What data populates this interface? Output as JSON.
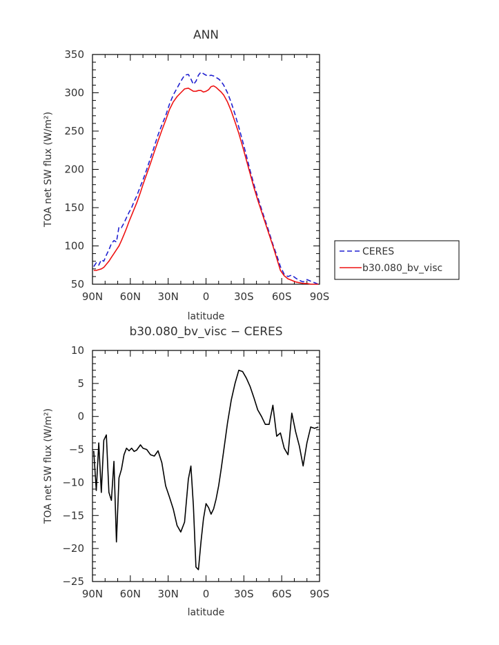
{
  "chart_data": [
    {
      "type": "line",
      "title": "ANN",
      "xlabel": "latitude",
      "ylabel": "TOA net SW flux (W/m²)",
      "x_ticks": [
        "90N",
        "60N",
        "30N",
        "0",
        "30S",
        "60S",
        "90S"
      ],
      "x_tick_values": [
        90,
        60,
        30,
        0,
        -30,
        -60,
        -90
      ],
      "xlim": [
        90,
        -90
      ],
      "ylim": [
        50,
        350
      ],
      "y_ticks": [
        50,
        100,
        150,
        200,
        250,
        300,
        350
      ],
      "legend_position": "right",
      "series": [
        {
          "name": "CERES",
          "color": "#1f1fd0",
          "style": "dashed",
          "x": [
            89,
            87,
            85,
            83,
            81,
            79,
            77,
            75,
            73,
            71,
            69,
            67,
            65,
            63,
            61,
            59,
            57,
            55,
            52,
            50,
            47,
            44,
            41,
            38,
            35,
            32,
            29,
            26,
            23,
            20,
            17,
            14,
            12,
            10,
            8,
            6,
            4,
            2,
            0,
            -2,
            -4,
            -6,
            -8,
            -10,
            -12,
            -14,
            -17,
            -20,
            -23,
            -26,
            -29,
            -32,
            -35,
            -38,
            -41,
            -44,
            -47,
            -50,
            -53,
            -56,
            -59,
            -62,
            -65,
            -68,
            -71,
            -74,
            -77,
            -80,
            -83,
            -86,
            -89
          ],
          "y": [
            73,
            78,
            75,
            82,
            80,
            88,
            95,
            103,
            107,
            105,
            125,
            124,
            130,
            137,
            144,
            150,
            158,
            165,
            178,
            186,
            200,
            215,
            230,
            245,
            258,
            270,
            285,
            297,
            306,
            315,
            323,
            324,
            318,
            311,
            315,
            323,
            327,
            325,
            323,
            322,
            323,
            322,
            320,
            318,
            315,
            310,
            300,
            287,
            272,
            255,
            237,
            218,
            198,
            180,
            164,
            148,
            133,
            118,
            102,
            88,
            73,
            63,
            60,
            62,
            58,
            55,
            53,
            56,
            54,
            52,
            50
          ]
        },
        {
          "name": "b30.080_bv_visc",
          "color": "#ee1111",
          "style": "solid",
          "x": [
            89,
            87,
            85,
            83,
            81,
            79,
            77,
            75,
            73,
            71,
            69,
            67,
            65,
            63,
            61,
            59,
            57,
            55,
            52,
            50,
            47,
            44,
            41,
            38,
            35,
            32,
            29,
            26,
            23,
            20,
            17,
            14,
            12,
            10,
            8,
            6,
            4,
            2,
            0,
            -2,
            -4,
            -6,
            -8,
            -10,
            -12,
            -14,
            -17,
            -20,
            -23,
            -26,
            -29,
            -32,
            -35,
            -38,
            -41,
            -44,
            -47,
            -50,
            -53,
            -56,
            -59,
            -62,
            -65,
            -68,
            -71,
            -74,
            -77,
            -80,
            -83,
            -86,
            -89
          ],
          "y": [
            68,
            68,
            69,
            70,
            72,
            76,
            80,
            85,
            90,
            95,
            100,
            107,
            115,
            123,
            132,
            140,
            148,
            156,
            170,
            180,
            194,
            208,
            223,
            237,
            251,
            264,
            278,
            288,
            295,
            300,
            305,
            306,
            304,
            302,
            302,
            303,
            303,
            301,
            302,
            304,
            308,
            309,
            307,
            304,
            301,
            297,
            288,
            276,
            262,
            247,
            230,
            212,
            194,
            176,
            160,
            145,
            130,
            115,
            100,
            84,
            68,
            61,
            57,
            55,
            53,
            52,
            51,
            51,
            50,
            50,
            50
          ]
        }
      ]
    },
    {
      "type": "line",
      "title": "b30.080_bv_visc − CERES",
      "xlabel": "latitude",
      "ylabel": "TOA net SW flux (W/m²)",
      "x_ticks": [
        "90N",
        "60N",
        "30N",
        "0",
        "30S",
        "60S",
        "90S"
      ],
      "x_tick_values": [
        90,
        60,
        30,
        0,
        -30,
        -60,
        -90
      ],
      "xlim": [
        90,
        -90
      ],
      "ylim": [
        -25,
        10
      ],
      "y_ticks": [
        -25,
        -20,
        -15,
        -10,
        -5,
        0,
        5,
        10
      ],
      "series": [
        {
          "color": "#000000",
          "style": "solid",
          "x": [
            89,
            87,
            85,
            83,
            81,
            79,
            77,
            75,
            73,
            71,
            69,
            67,
            65,
            63,
            61,
            59,
            57,
            55,
            52,
            50,
            47,
            44,
            41,
            38,
            35,
            32,
            29,
            26,
            23,
            20,
            17,
            14,
            12,
            10,
            8,
            6,
            4,
            2,
            0,
            -2,
            -4,
            -6,
            -8,
            -10,
            -12,
            -14,
            -17,
            -20,
            -23,
            -26,
            -29,
            -32,
            -35,
            -38,
            -41,
            -44,
            -47,
            -50,
            -53,
            -56,
            -59,
            -62,
            -65,
            -68,
            -71,
            -74,
            -77,
            -80,
            -83,
            -86,
            -89
          ],
          "y": [
            -5.2,
            -11.2,
            -4,
            -11.5,
            -3.6,
            -2.8,
            -11.5,
            -12.7,
            -6.8,
            -19,
            -9.3,
            -8,
            -5.8,
            -4.8,
            -5.2,
            -4.8,
            -5.3,
            -5.1,
            -4.3,
            -4.8,
            -5,
            -5.8,
            -6,
            -5.2,
            -7,
            -10.5,
            -12.2,
            -14,
            -16.5,
            -17.5,
            -16,
            -9.5,
            -7.5,
            -13.5,
            -22.8,
            -23.2,
            -19,
            -15.5,
            -13.2,
            -13.8,
            -14.8,
            -14,
            -12.5,
            -10.5,
            -8,
            -5.2,
            -1,
            2.5,
            5,
            7,
            6.8,
            5.8,
            4.5,
            2.8,
            1,
            0,
            -1.2,
            -1.2,
            1.7,
            -3,
            -2.5,
            -4.8,
            -5.8,
            0.5,
            -2.3,
            -4.5,
            -7.5,
            -4,
            -1.6,
            -1.8,
            -1.6
          ]
        }
      ]
    }
  ]
}
